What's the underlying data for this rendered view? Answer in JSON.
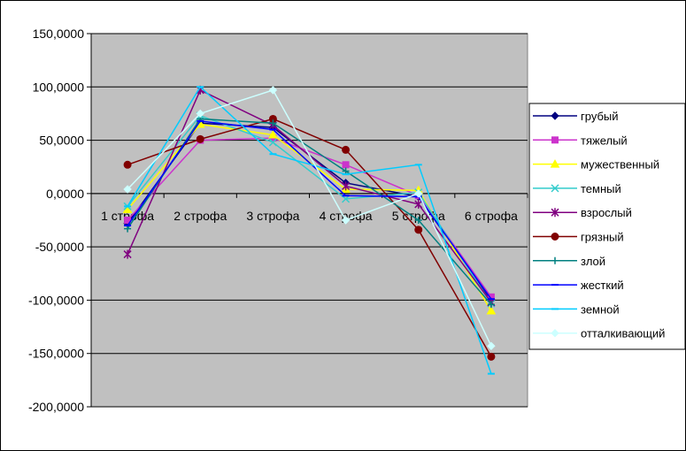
{
  "chart_data": {
    "type": "line",
    "categories": [
      "1 строфа",
      "2 строфа",
      "3 строфа",
      "4 строфа",
      "5 строфа",
      "6 строфа"
    ],
    "y_tick_labels": [
      "150,0000",
      "100,0000",
      "50,0000",
      "0,0000",
      "-50,0000",
      "-100,0000",
      "-150,0000",
      "-200,0000"
    ],
    "ylim": [
      -200,
      150
    ],
    "grid": true,
    "plot_background": "#c0c0c0",
    "legend_position": "right",
    "series": [
      {
        "name": "грубый",
        "color": "#000080",
        "marker": "diamond",
        "values": [
          -28,
          66,
          62,
          10,
          -3,
          -100
        ]
      },
      {
        "name": "тяжелый",
        "color": "#cc33cc",
        "marker": "square",
        "values": [
          -25,
          50,
          52,
          27,
          -2,
          -97
        ]
      },
      {
        "name": "мужественный",
        "color": "#ffff00",
        "marker": "triangle",
        "values": [
          -15,
          65,
          55,
          4,
          3,
          -110
        ]
      },
      {
        "name": "темный",
        "color": "#33cccc",
        "marker": "x",
        "values": [
          -12,
          73,
          48,
          -5,
          1,
          -103
        ]
      },
      {
        "name": "взрослый",
        "color": "#800080",
        "marker": "star",
        "values": [
          -57,
          97,
          64,
          7,
          -10,
          -102
        ]
      },
      {
        "name": "грязный",
        "color": "#800000",
        "marker": "circle",
        "values": [
          27,
          51,
          70,
          41,
          -34,
          -153
        ]
      },
      {
        "name": "злой",
        "color": "#008080",
        "marker": "plus",
        "values": [
          -33,
          70,
          66,
          21,
          -25,
          -104
        ]
      },
      {
        "name": "жесткий",
        "color": "#0000ff",
        "marker": "dash",
        "values": [
          -30,
          68,
          60,
          -2,
          -3,
          -99
        ]
      },
      {
        "name": "земной",
        "color": "#00ccff",
        "marker": "dash",
        "values": [
          -12,
          100,
          37,
          18,
          27,
          -169
        ]
      },
      {
        "name": "отталкивающий",
        "color": "#ccffff",
        "marker": "diamond",
        "values": [
          4,
          75,
          97,
          -25,
          0,
          -143
        ]
      }
    ]
  }
}
